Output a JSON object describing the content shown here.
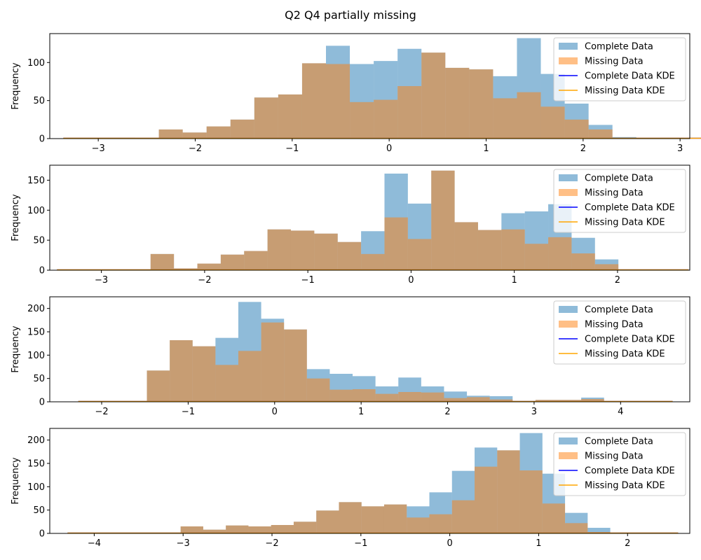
{
  "figure": {
    "title": "Q2 Q4 partially missing"
  },
  "colors": {
    "complete_hist": "#1f77b4",
    "missing_hist": "#ff7f0e",
    "complete_kde": "#0000ff",
    "missing_kde": "#ffa500"
  },
  "chart_data": [
    {
      "type": "bar",
      "ylabel": "Frequency",
      "xlim": [
        -3.5,
        3.1
      ],
      "ylim": [
        0,
        138
      ],
      "xticks": [
        -3,
        -2,
        -1,
        0,
        1,
        2,
        3
      ],
      "yticks": [
        0,
        50,
        100
      ],
      "legend": {
        "position": "top-right",
        "entries": [
          "Complete Data",
          "Missing Data",
          "Complete Data KDE",
          "Missing Data KDE"
        ]
      },
      "bins": {
        "start": -3.36,
        "width": 0.2462
      },
      "series": [
        {
          "name": "Complete Data",
          "values": [
            1,
            1,
            1,
            0,
            12,
            8,
            16,
            25,
            54,
            58,
            99,
            122,
            98,
            102,
            118,
            113,
            93,
            91,
            82,
            132,
            85,
            46,
            18,
            2,
            0,
            1,
            0,
            1,
            1
          ]
        },
        {
          "name": "Missing Data",
          "values": [
            1,
            1,
            1,
            0,
            12,
            8,
            16,
            25,
            54,
            58,
            99,
            98,
            48,
            51,
            69,
            113,
            93,
            91,
            53,
            61,
            42,
            25,
            12,
            0,
            0,
            1,
            0,
            1,
            1
          ]
        }
      ]
    },
    {
      "type": "bar",
      "ylabel": "Frequency",
      "xlim": [
        -3.5,
        2.7
      ],
      "ylim": [
        0,
        175
      ],
      "xticks": [
        -3,
        -2,
        -1,
        0,
        1,
        2
      ],
      "yticks": [
        0,
        50,
        100,
        150
      ],
      "legend": {
        "position": "top-right",
        "entries": [
          "Complete Data",
          "Missing Data",
          "Complete Data KDE",
          "Missing Data KDE"
        ]
      },
      "bins": {
        "start": -3.43,
        "width": 0.2266
      },
      "series": [
        {
          "name": "Complete Data",
          "values": [
            1,
            1,
            1,
            1,
            27,
            3,
            11,
            26,
            32,
            68,
            66,
            61,
            47,
            65,
            161,
            111,
            166,
            80,
            67,
            95,
            98,
            110,
            54,
            18,
            1,
            1,
            1
          ]
        },
        {
          "name": "Missing Data",
          "values": [
            1,
            1,
            1,
            1,
            27,
            3,
            11,
            26,
            32,
            68,
            66,
            61,
            47,
            27,
            88,
            52,
            166,
            80,
            67,
            68,
            44,
            55,
            28,
            10,
            1,
            1,
            1
          ]
        }
      ]
    },
    {
      "type": "bar",
      "ylabel": "Frequency",
      "xlim": [
        -2.6,
        4.8
      ],
      "ylim": [
        0,
        225
      ],
      "xticks": [
        -2,
        -1,
        0,
        1,
        2,
        3,
        4
      ],
      "yticks": [
        0,
        50,
        100,
        150,
        200
      ],
      "legend": {
        "position": "top-right",
        "entries": [
          "Complete Data",
          "Missing Data",
          "Complete Data KDE",
          "Missing Data KDE"
        ]
      },
      "bins": {
        "start": -2.27,
        "width": 0.2643
      },
      "series": [
        {
          "name": "Complete Data",
          "values": [
            1,
            1,
            1,
            67,
            132,
            119,
            137,
            214,
            178,
            155,
            70,
            60,
            55,
            33,
            52,
            33,
            22,
            13,
            12,
            1,
            4,
            4,
            9,
            1,
            1,
            1
          ]
        },
        {
          "name": "Missing Data",
          "values": [
            1,
            1,
            1,
            67,
            132,
            119,
            79,
            109,
            170,
            155,
            50,
            26,
            27,
            17,
            21,
            20,
            8,
            10,
            5,
            1,
            4,
            4,
            6,
            1,
            1,
            1
          ]
        }
      ]
    },
    {
      "type": "bar",
      "ylabel": "Frequency",
      "xlim": [
        -4.5,
        2.7
      ],
      "ylim": [
        0,
        225
      ],
      "xticks": [
        -4,
        -3,
        -2,
        -1,
        0,
        1,
        2
      ],
      "yticks": [
        0,
        50,
        100,
        150,
        200
      ],
      "legend": {
        "position": "top-right",
        "entries": [
          "Complete Data",
          "Missing Data",
          "Complete Data KDE",
          "Missing Data KDE"
        ]
      },
      "bins": {
        "start": -4.3,
        "width": 0.2544
      },
      "series": [
        {
          "name": "Complete Data",
          "values": [
            1,
            1,
            1,
            1,
            1,
            15,
            8,
            17,
            15,
            18,
            25,
            49,
            67,
            58,
            62,
            58,
            88,
            134,
            184,
            178,
            215,
            128,
            44,
            12,
            1,
            1,
            1
          ]
        },
        {
          "name": "Missing Data",
          "values": [
            1,
            1,
            1,
            1,
            1,
            15,
            8,
            17,
            15,
            18,
            25,
            49,
            67,
            58,
            62,
            34,
            41,
            71,
            143,
            178,
            135,
            64,
            22,
            3,
            1,
            1,
            1
          ]
        }
      ]
    }
  ]
}
